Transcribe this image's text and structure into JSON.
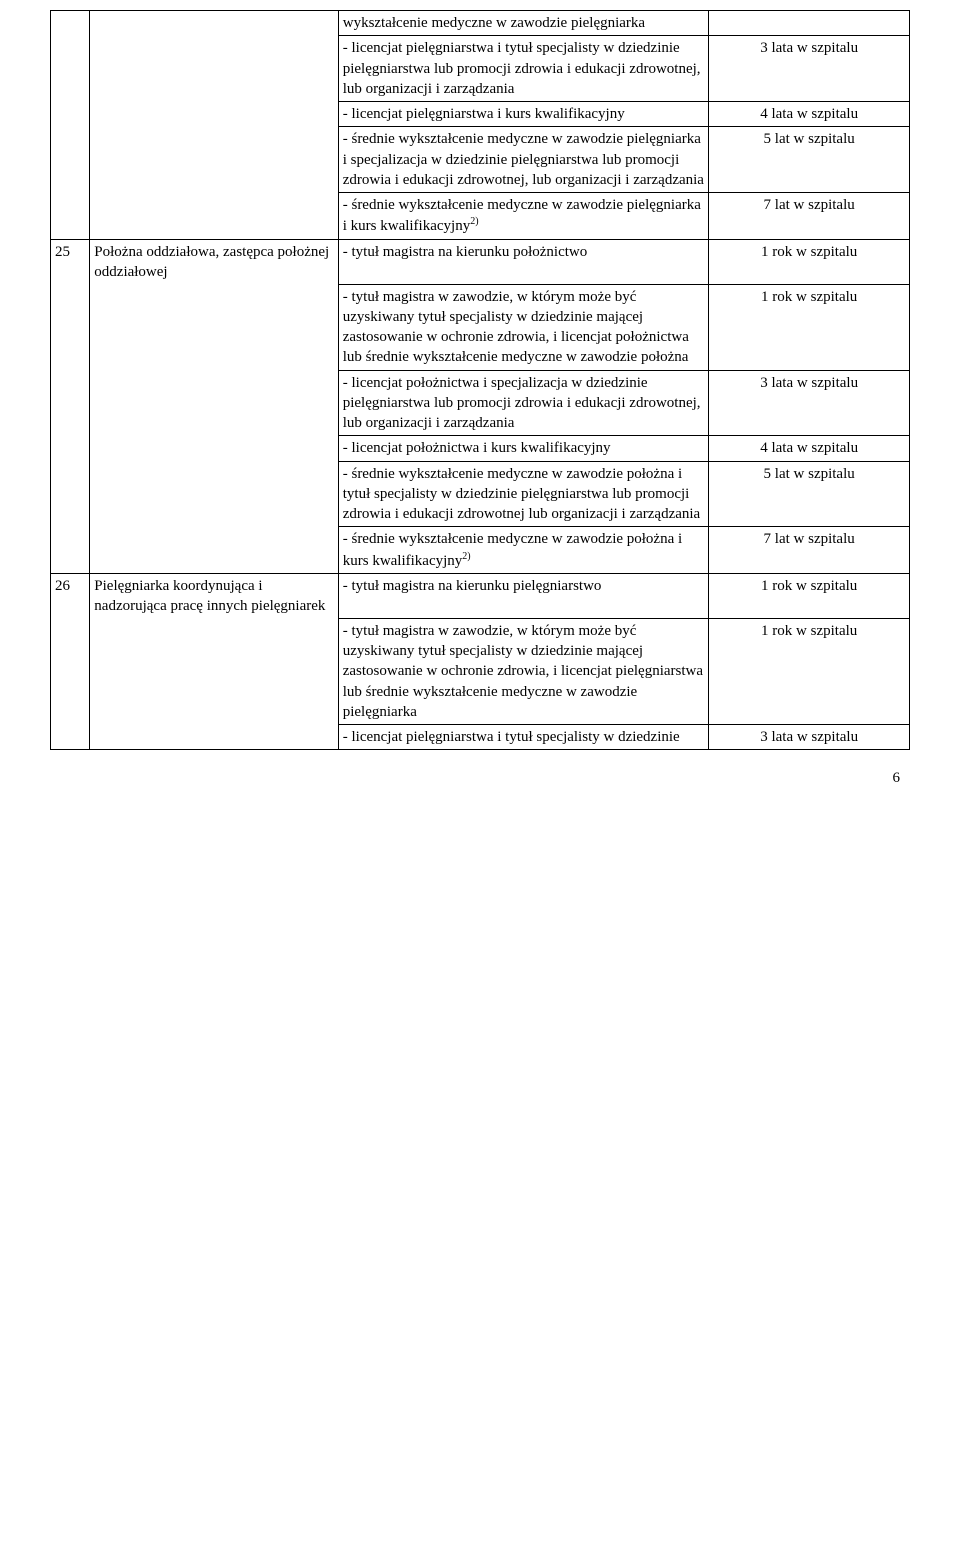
{
  "page_number": "6",
  "rows": [
    {
      "num": "",
      "title": "",
      "cells": [
        {
          "desc": "wykształcenie medyczne w zawodzie pielęgniarka",
          "years": ""
        },
        {
          "desc": "- licencjat pielęgniarstwa i tytuł specjalisty w dziedzinie pielęgniarstwa lub promocji zdrowia i edukacji zdrowotnej, lub organizacji i zarządzania",
          "years": "3 lata w szpitalu"
        },
        {
          "desc": "- licencjat pielęgniarstwa i kurs kwalifikacyjny",
          "years": "4 lata w szpitalu"
        },
        {
          "desc": "- średnie wykształcenie medyczne w zawodzie pielęgniarka i specjalizacja w dziedzinie pielęgniarstwa lub promocji zdrowia i edukacji zdrowotnej, lub organizacji i zarządzania",
          "years": "5 lat w szpitalu"
        },
        {
          "desc_html": "- średnie wykształcenie medyczne w zawodzie pielęgniarka i kurs kwalifikacyjny<sup>2)</sup>",
          "years": "7 lat w szpitalu"
        }
      ]
    },
    {
      "num": "25",
      "title": "Położna oddziałowa, zastępca położnej oddziałowej",
      "cells": [
        {
          "desc": "- tytuł magistra na kierunku położnictwo",
          "years": "1 rok w szpitalu"
        },
        {
          "desc": "- tytuł magistra w zawodzie, w którym może być uzyskiwany tytuł specjalisty w dziedzinie mającej zastosowanie w ochronie zdrowia, i licencjat położnictwa lub średnie wykształcenie medyczne w zawodzie położna",
          "years": "1 rok w szpitalu"
        },
        {
          "desc": "- licencjat położnictwa i specjalizacja w dziedzinie pielęgniarstwa lub promocji zdrowia i edukacji zdrowotnej, lub organizacji i zarządzania",
          "years": "3 lata w szpitalu"
        },
        {
          "desc": "- licencjat położnictwa i kurs kwalifikacyjny",
          "years": "4 lata w szpitalu"
        },
        {
          "desc": "- średnie wykształcenie medyczne w zawodzie położna i tytuł specjalisty w dziedzinie pielęgniarstwa lub promocji zdrowia i edukacji zdrowotnej lub organizacji i zarządzania",
          "years": "5 lat w szpitalu"
        },
        {
          "desc_html": "- średnie wykształcenie medyczne w zawodzie położna i kurs kwalifikacyjny<sup>2)</sup>",
          "years": "7 lat w szpitalu"
        }
      ]
    },
    {
      "num": "26",
      "title": "Pielęgniarka koordynująca i nadzorująca pracę innych pielęgniarek",
      "cells": [
        {
          "desc": "- tytuł magistra na kierunku pielęgniarstwo",
          "years": "1 rok w szpitalu"
        },
        {
          "desc": "- tytuł magistra w zawodzie, w którym może być uzyskiwany tytuł specjalisty w dziedzinie mającej zastosowanie w ochronie zdrowia, i licencjat pielęgniarstwa lub średnie wykształcenie medyczne w zawodzie pielęgniarka",
          "years": "1 rok w szpitalu"
        },
        {
          "desc": "- licencjat pielęgniarstwa i tytuł specjalisty w dziedzinie",
          "years": "3 lata w szpitalu"
        }
      ]
    }
  ]
}
